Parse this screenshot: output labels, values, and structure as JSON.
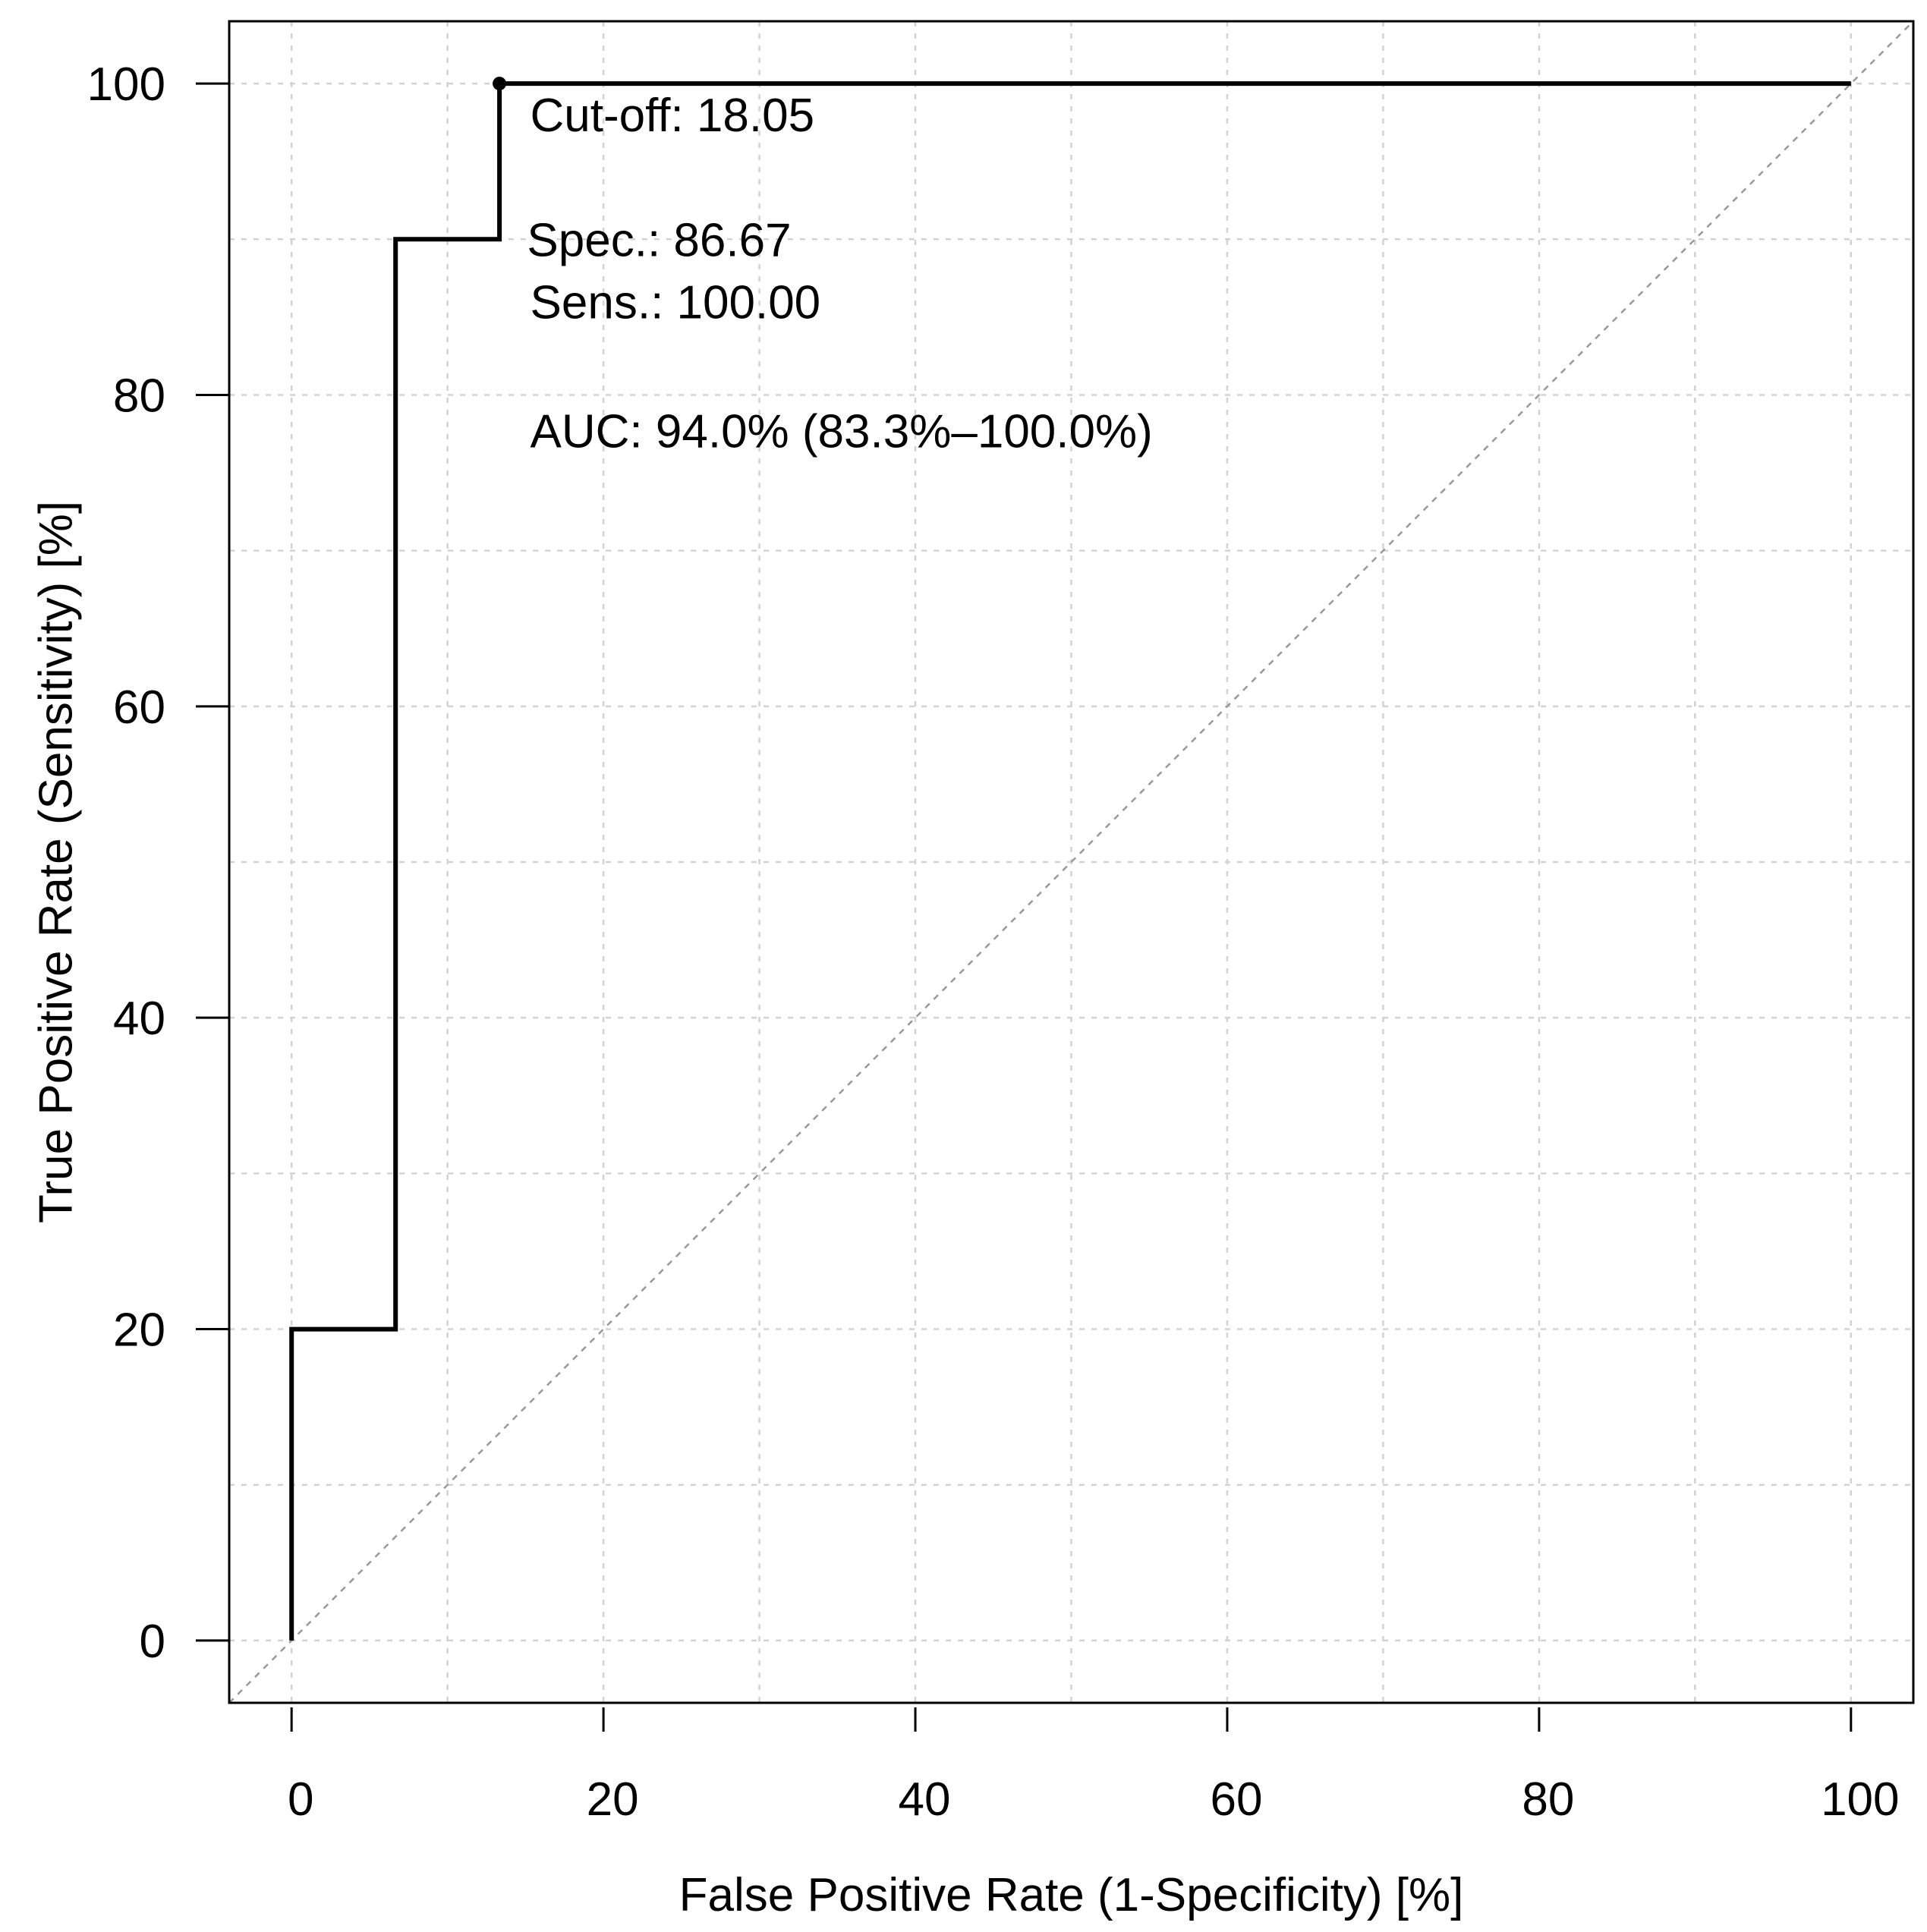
{
  "chart_data": {
    "type": "line",
    "xlabel": "False Positive Rate (1-Specificity) [%]",
    "ylabel": "True Positive Rate (Sensitivity) [%]",
    "xlim": [
      -4,
      104
    ],
    "ylim": [
      -4,
      104
    ],
    "x_ticks": [
      0,
      20,
      40,
      60,
      80,
      100
    ],
    "y_ticks": [
      0,
      20,
      40,
      60,
      80,
      100
    ],
    "grid": true,
    "grid_step": 10,
    "series": [
      {
        "style": "step",
        "color": "#000000",
        "x": [
          0,
          0,
          6.67,
          6.67,
          13.33,
          13.33,
          100
        ],
        "y": [
          0,
          20,
          20,
          90,
          90,
          100,
          100
        ]
      }
    ],
    "reference_line": {
      "x": [
        -4,
        104
      ],
      "y": [
        -4,
        104
      ],
      "color": "#999999",
      "style": "dashed"
    },
    "highlight_point": {
      "x": 13.33,
      "y": 100
    },
    "annotations": [
      {
        "id": "cutoff",
        "text": "Cut-off: 18.05",
        "x": 15.3,
        "y": 98
      },
      {
        "id": "spec",
        "text": "Spec.: 86.67",
        "x": 15.1,
        "y": 90
      },
      {
        "id": "sens",
        "text": "Sens.: 100.00",
        "x": 15.3,
        "y": 86
      },
      {
        "id": "auc",
        "text": "AUC: 94.0% (83.3%–100.0%)",
        "x": 15.3,
        "y": 77.7
      }
    ]
  }
}
